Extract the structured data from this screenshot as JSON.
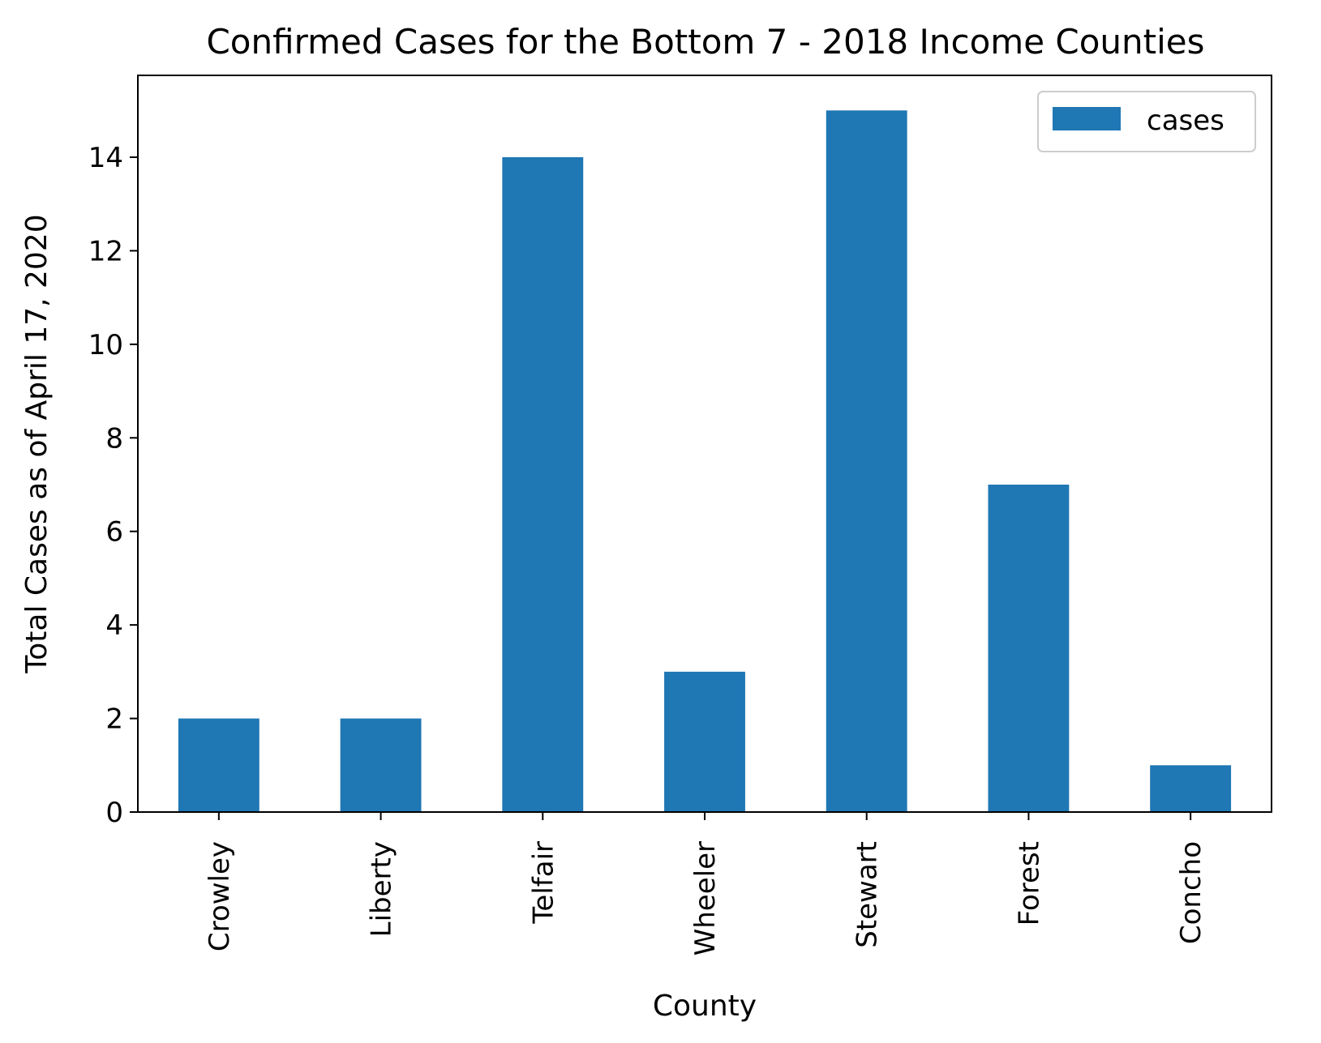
{
  "chart_data": {
    "type": "bar",
    "title": "Confirmed Cases for the Bottom 7 - 2018 Income Counties",
    "xlabel": "County",
    "ylabel": "Total Cases as of April 17, 2020",
    "categories": [
      "Crowley",
      "Liberty",
      "Telfair",
      "Wheeler",
      "Stewart",
      "Forest",
      "Concho"
    ],
    "series": [
      {
        "name": "cases",
        "values": [
          2,
          2,
          14,
          3,
          15,
          7,
          1
        ],
        "color": "#1f77b4"
      }
    ],
    "ylim": [
      0,
      15.75
    ],
    "yticks": [
      0,
      2,
      4,
      6,
      8,
      10,
      12,
      14
    ],
    "ytick_labels": [
      "0",
      "2",
      "4",
      "6",
      "8",
      "10",
      "12",
      "14"
    ],
    "grid": false,
    "legend_position": "top-right",
    "x_tick_rotation": "vertical"
  }
}
